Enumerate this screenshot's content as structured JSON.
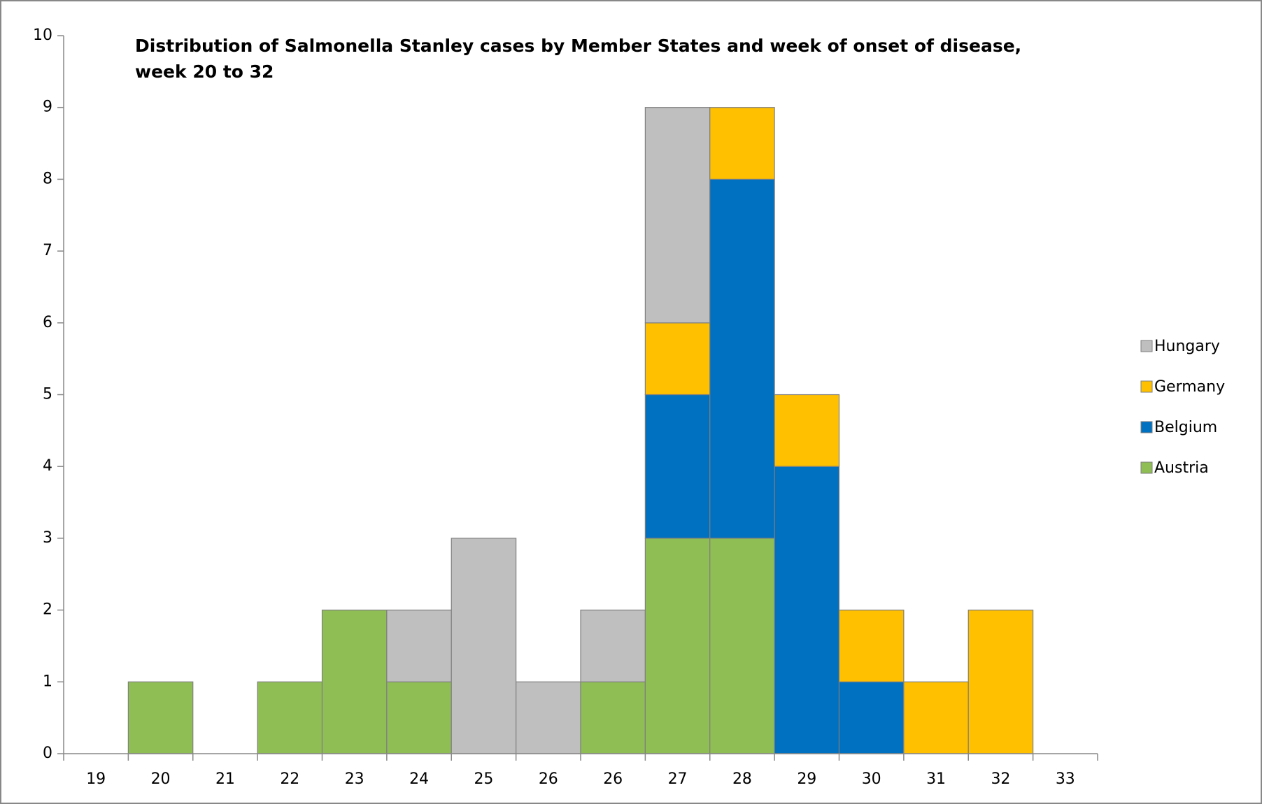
{
  "chart_data": {
    "type": "stacked_bar",
    "title": [
      "Distribution of Salmonella Stanley cases by Member States and week of onset of disease,",
      "week 20 to 32"
    ],
    "categories": [
      "19",
      "20",
      "21",
      "22",
      "23",
      "24",
      "25",
      "26",
      "26",
      "27",
      "28",
      "29",
      "30",
      "31",
      "32",
      "33"
    ],
    "series": [
      {
        "name": "Austria",
        "color": "#8fbe55",
        "values": [
          0,
          1,
          0,
          1,
          2,
          1,
          0,
          0,
          1,
          3,
          3,
          0,
          0,
          0,
          0,
          0
        ]
      },
      {
        "name": "Belgium",
        "color": "#0070c0",
        "values": [
          0,
          0,
          0,
          0,
          0,
          0,
          0,
          0,
          0,
          2,
          5,
          4,
          1,
          0,
          0,
          0
        ]
      },
      {
        "name": "Germany",
        "color": "#ffc000",
        "values": [
          0,
          0,
          0,
          0,
          0,
          0,
          0,
          0,
          0,
          1,
          1,
          1,
          1,
          1,
          2,
          0
        ]
      },
      {
        "name": "Hungary",
        "color": "#bfbfbf",
        "values": [
          0,
          0,
          0,
          0,
          0,
          1,
          3,
          1,
          1,
          3,
          0,
          0,
          0,
          0,
          0,
          0
        ]
      }
    ],
    "ylim": [
      0,
      10
    ],
    "yticks": [
      0,
      1,
      2,
      3,
      4,
      5,
      6,
      7,
      8,
      9,
      10
    ],
    "legend": "right",
    "grid": false
  }
}
